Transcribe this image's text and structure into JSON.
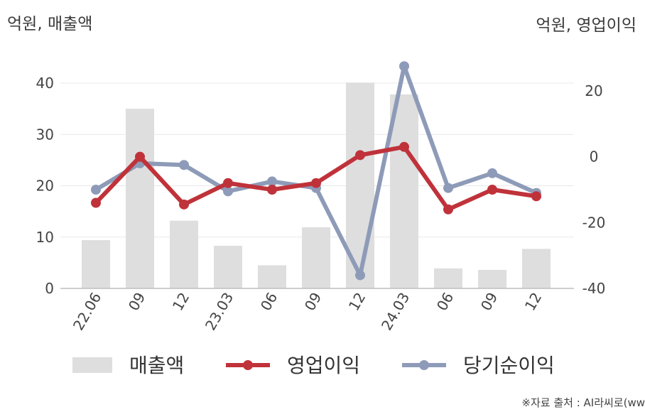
{
  "chart_data": {
    "type": "bar+line",
    "categories": [
      "22.06",
      "09",
      "12",
      "23.03",
      "06",
      "09",
      "12",
      "24.03",
      "06",
      "09",
      "12"
    ],
    "left_axis": {
      "label": "억원, 매출액",
      "ylim": [
        0,
        45
      ],
      "ticks": [
        0,
        10,
        20,
        30,
        40
      ]
    },
    "right_axis": {
      "label": "억원, 영업이익",
      "ylim": [
        -40,
        30
      ],
      "ticks": [
        -40,
        -20,
        0,
        20
      ]
    },
    "series": [
      {
        "name": "매출액",
        "type": "bar",
        "axis": "left",
        "color": "#dedede",
        "values": [
          9.4,
          35.0,
          13.2,
          8.3,
          4.5,
          11.9,
          40.1,
          37.8,
          3.9,
          3.6,
          7.7
        ]
      },
      {
        "name": "영업이익",
        "type": "line",
        "axis": "right",
        "color": "#c0323a",
        "values": [
          -14,
          0,
          -14.5,
          -8,
          -10,
          -8,
          0.5,
          3,
          -16,
          -10,
          -12
        ]
      },
      {
        "name": "당기순이익",
        "type": "line",
        "axis": "right",
        "color": "#8e9bb8",
        "values": [
          -10,
          -2,
          -2.5,
          -10.5,
          -7.5,
          -9.5,
          -36,
          27.5,
          -9.5,
          -5,
          -11
        ]
      }
    ],
    "grid": true,
    "legend_position": "bottom"
  },
  "source_note": "※자료 출처 : AI라씨로(ww"
}
